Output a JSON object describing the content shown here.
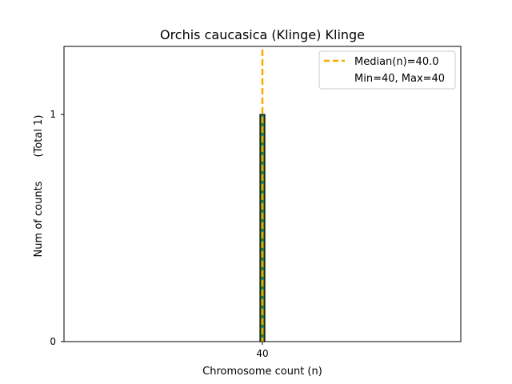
{
  "chart_data": {
    "type": "bar",
    "title": "Orchis caucasica (Klinge) Klinge",
    "xlabel": "Chromosome count (n)",
    "ylabel": "Num of counts",
    "ylabel_extra": "(Total 1)",
    "categories": [
      40
    ],
    "values": [
      1
    ],
    "x_ticks": [
      "40"
    ],
    "y_ticks": [
      "0",
      "1"
    ],
    "xlim": [
      35,
      45
    ],
    "ylim": [
      0,
      1.3
    ],
    "grid": false,
    "legend_position": "top-right",
    "median_line": {
      "x": 40,
      "label": "Median(n)=40.0",
      "color": "#ffa500"
    },
    "legend_extra": "Min=40, Max=40",
    "colors": {
      "bar_fill": "#2a7a2a",
      "bar_edge": "#000000",
      "bar_dots": "#1e90ff",
      "median": "#ffa500"
    }
  }
}
